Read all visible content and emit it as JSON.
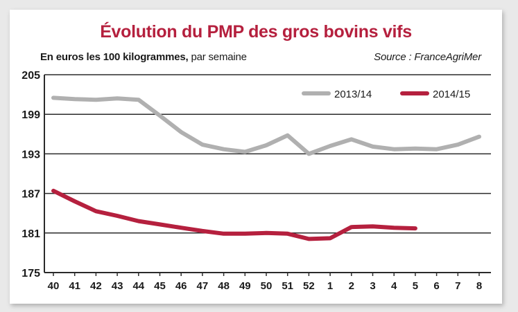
{
  "chart_data": {
    "type": "line",
    "title": "Évolution du PMP des gros bovins vifs",
    "subtitle_bold": "En euros les 100 kilogrammes,",
    "subtitle_rest": " par semaine",
    "source": "Source : FranceAgriMer",
    "categories": [
      "40",
      "41",
      "42",
      "43",
      "44",
      "45",
      "46",
      "47",
      "48",
      "49",
      "50",
      "51",
      "52",
      "1",
      "2",
      "3",
      "4",
      "5",
      "6",
      "7",
      "8"
    ],
    "ylim": [
      175,
      205
    ],
    "yticks": [
      205,
      199,
      193,
      187,
      181,
      175
    ],
    "grid": "horizontal",
    "legend_position": "top-right",
    "series": [
      {
        "name": "2013/14",
        "color": "#b0b0b0",
        "values": [
          201.5,
          201.3,
          201.2,
          201.4,
          201.2,
          198.8,
          196.3,
          194.4,
          193.7,
          193.3,
          194.3,
          195.8,
          193.0,
          194.2,
          195.2,
          194.1,
          193.7,
          193.8,
          193.7,
          194.4,
          195.6
        ]
      },
      {
        "name": "2014/15",
        "color": "#b5203e",
        "values": [
          187.4,
          185.8,
          184.3,
          183.6,
          182.8,
          182.3,
          181.8,
          181.3,
          180.9,
          180.9,
          181.0,
          180.9,
          180.1,
          180.2,
          181.9,
          182.0,
          181.8,
          181.7,
          null,
          null,
          null
        ]
      }
    ]
  }
}
